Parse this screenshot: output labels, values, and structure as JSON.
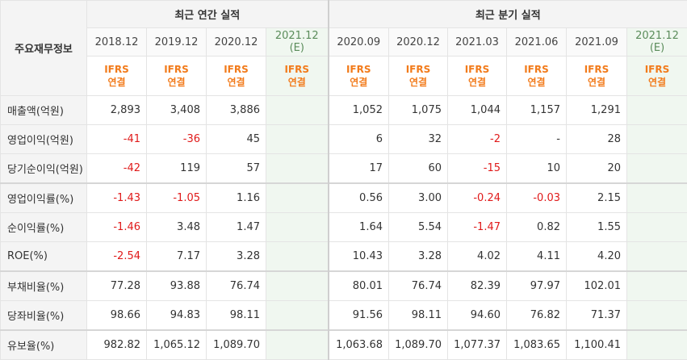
{
  "header": {
    "corner": "주요재무정보",
    "annual_group": "최근 연간 실적",
    "quarterly_group": "최근 분기 실적",
    "annual_periods": [
      {
        "label": "2018.12",
        "est": ""
      },
      {
        "label": "2019.12",
        "est": ""
      },
      {
        "label": "2020.12",
        "est": ""
      },
      {
        "label": "2021.12",
        "est": "(E)"
      }
    ],
    "quarterly_periods": [
      {
        "label": "2020.09",
        "est": ""
      },
      {
        "label": "2020.12",
        "est": ""
      },
      {
        "label": "2021.03",
        "est": ""
      },
      {
        "label": "2021.06",
        "est": ""
      },
      {
        "label": "2021.09",
        "est": ""
      },
      {
        "label": "2021.12",
        "est": "(E)"
      }
    ],
    "ifrs_line1": "IFRS",
    "ifrs_line2": "연결"
  },
  "rows": [
    {
      "label": "매출액(억원)",
      "annual": [
        "2,893",
        "3,408",
        "3,886",
        ""
      ],
      "quarterly": [
        "1,052",
        "1,075",
        "1,044",
        "1,157",
        "1,291",
        ""
      ]
    },
    {
      "label": "영업이익(억원)",
      "annual": [
        "-41",
        "-36",
        "45",
        ""
      ],
      "quarterly": [
        "6",
        "32",
        "-2",
        "-",
        "28",
        ""
      ]
    },
    {
      "label": "당기순이익(억원)",
      "annual": [
        "-42",
        "119",
        "57",
        ""
      ],
      "quarterly": [
        "17",
        "60",
        "-15",
        "10",
        "20",
        ""
      ]
    },
    {
      "label": "영업이익률(%)",
      "annual": [
        "-1.43",
        "-1.05",
        "1.16",
        ""
      ],
      "quarterly": [
        "0.56",
        "3.00",
        "-0.24",
        "-0.03",
        "2.15",
        ""
      ]
    },
    {
      "label": "순이익률(%)",
      "annual": [
        "-1.46",
        "3.48",
        "1.47",
        ""
      ],
      "quarterly": [
        "1.64",
        "5.54",
        "-1.47",
        "0.82",
        "1.55",
        ""
      ]
    },
    {
      "label": "ROE(%)",
      "annual": [
        "-2.54",
        "7.17",
        "3.28",
        ""
      ],
      "quarterly": [
        "10.43",
        "3.28",
        "4.02",
        "4.11",
        "4.20",
        ""
      ]
    },
    {
      "label": "부채비율(%)",
      "annual": [
        "77.28",
        "93.88",
        "76.74",
        ""
      ],
      "quarterly": [
        "80.01",
        "76.74",
        "82.39",
        "97.97",
        "102.01",
        ""
      ]
    },
    {
      "label": "당좌비율(%)",
      "annual": [
        "98.66",
        "94.83",
        "98.11",
        ""
      ],
      "quarterly": [
        "91.56",
        "98.11",
        "94.60",
        "76.82",
        "71.37",
        ""
      ]
    },
    {
      "label": "유보율(%)",
      "annual": [
        "982.82",
        "1,065.12",
        "1,089.70",
        ""
      ],
      "quarterly": [
        "1,063.68",
        "1,089.70",
        "1,077.37",
        "1,083.65",
        "1,100.41",
        ""
      ]
    }
  ],
  "colors": {
    "negative": "#e01a1a",
    "ifrs": "#f27b1b",
    "estimate_bg": "#f0f7f0"
  }
}
